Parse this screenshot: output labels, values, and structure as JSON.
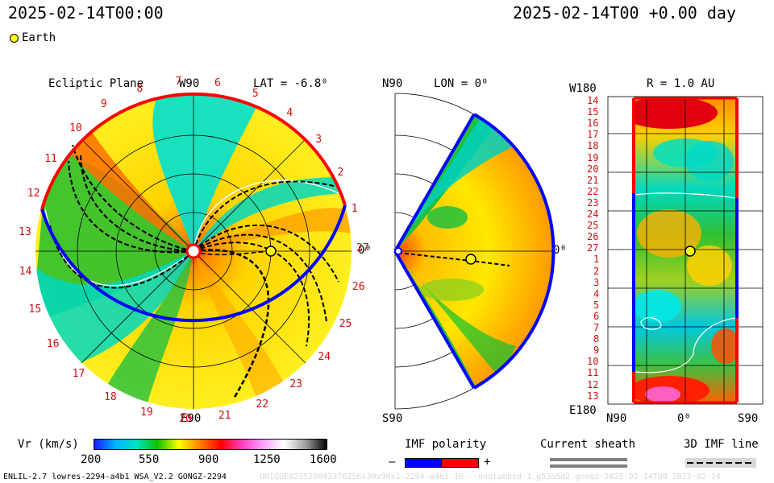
{
  "header": {
    "left_date": "2025-02-14T00:00",
    "right_date": "2025-02-14T00 +0.00 day",
    "legend_earth": "Earth"
  },
  "ecliptic": {
    "title": "Ecliptic Plane",
    "top_label": "W90",
    "bottom_label": "E90",
    "right_label": "0⁰",
    "lat_label": "LAT = -6.8⁰",
    "rotation_labels": [
      "1",
      "2",
      "3",
      "4",
      "5",
      "6",
      "7",
      "8",
      "9",
      "10",
      "11",
      "12",
      "13",
      "14",
      "15",
      "16",
      "17",
      "18",
      "19",
      "20",
      "21",
      "22",
      "23",
      "24",
      "25",
      "26",
      "27"
    ]
  },
  "meridional": {
    "top_label": "N90",
    "lon_label": "LON = 0⁰",
    "bottom_label": "S90",
    "right_label": "0⁰"
  },
  "radial": {
    "title": "R = 1.0 AU",
    "top_left": "W180",
    "bottom_left": "E180",
    "x_labels": [
      "N90",
      "0⁰",
      "S90"
    ],
    "y_labels": [
      "14",
      "15",
      "16",
      "17",
      "18",
      "19",
      "20",
      "21",
      "22",
      "23",
      "24",
      "25",
      "26",
      "27",
      "1",
      "2",
      "3",
      "4",
      "5",
      "6",
      "7",
      "8",
      "9",
      "10",
      "11",
      "12",
      "13"
    ]
  },
  "colorbar": {
    "label": "Vr (km/s)",
    "ticks": [
      "200",
      "550",
      "900",
      "1250",
      "1600"
    ],
    "stops": [
      "#1a1aff",
      "#00b4ff",
      "#00e0c0",
      "#10c000",
      "#ffff00",
      "#ff8000",
      "#ff0000",
      "#ff40c0",
      "#ffa0ff",
      "#ffffff",
      "#a0a0a0",
      "#000000"
    ]
  },
  "legends": {
    "imf_polarity": "IMF polarity",
    "minus": "–",
    "plus": "+",
    "current_sheath": "Current sheath",
    "imf_line": "3D IMF line"
  },
  "footer": {
    "model": "ENLIL-2.7 lowres-2294-a4b1 WSA_V2.2 GONGZ-2294",
    "faded": "UNIQUE021520042376256x30x90x1-2294-a4b1.16---noplumbed-1.g53a5d2.gongz-2025-02-14T00    2025-02-14"
  },
  "colors": {
    "earth": "#ffff00",
    "positive": "#ff0000",
    "negative": "#0000ff",
    "tick_red": "#d01010"
  }
}
